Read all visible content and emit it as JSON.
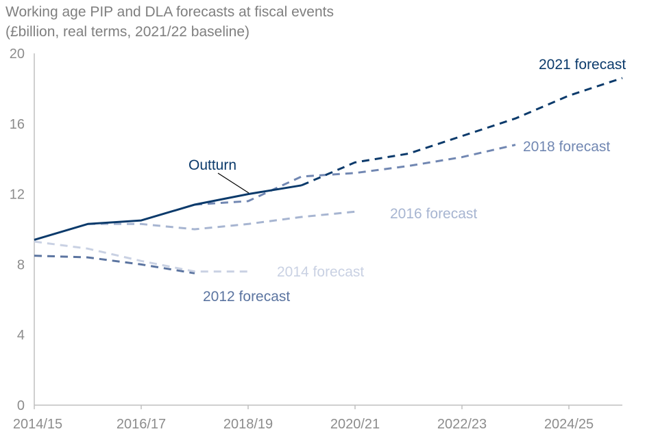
{
  "chart_data": {
    "type": "line",
    "title": "Working age PIP and DLA forecasts at fiscal events",
    "subtitle": "(£billion, real terms, 2021/22 baseline)",
    "xlabel": "",
    "ylabel": "",
    "ylim": [
      0,
      20
    ],
    "yticks": [
      0,
      4,
      8,
      12,
      16,
      20
    ],
    "x": [
      "2014/15",
      "2015/16",
      "2016/17",
      "2017/18",
      "2018/19",
      "2019/20",
      "2020/21",
      "2021/22",
      "2022/23",
      "2023/24",
      "2024/25",
      "2025/26"
    ],
    "xtick_labels": [
      "2014/15",
      "2016/17",
      "2018/19",
      "2020/21",
      "2022/23",
      "2024/25"
    ],
    "grid": false,
    "series": [
      {
        "name": "Outturn",
        "style": "solid",
        "color": "#0b3a6b",
        "values": [
          9.4,
          10.3,
          10.5,
          11.4,
          12.0,
          12.5,
          null,
          null,
          null,
          null,
          null,
          null
        ]
      },
      {
        "name": "2012 forecast",
        "style": "dashed",
        "color": "#5b74a0",
        "values": [
          8.5,
          8.4,
          8.0,
          7.5,
          null,
          null,
          null,
          null,
          null,
          null,
          null,
          null
        ]
      },
      {
        "name": "2014 forecast",
        "style": "dashed",
        "color": "#c9d1e3",
        "values": [
          9.3,
          8.9,
          8.2,
          7.6,
          7.6,
          null,
          null,
          null,
          null,
          null,
          null,
          null
        ]
      },
      {
        "name": "2016 forecast",
        "style": "dashed",
        "color": "#a7b5d1",
        "values": [
          null,
          10.3,
          10.3,
          10.0,
          10.3,
          10.7,
          11.0,
          null,
          null,
          null,
          null,
          null
        ]
      },
      {
        "name": "2018 forecast",
        "style": "dashed",
        "color": "#7187b2",
        "values": [
          null,
          null,
          null,
          11.4,
          11.6,
          13.0,
          13.2,
          13.6,
          14.1,
          14.8,
          null,
          null
        ]
      },
      {
        "name": "2021 forecast",
        "style": "dashed",
        "color": "#0b3a6b",
        "values": [
          null,
          null,
          null,
          null,
          null,
          12.5,
          13.8,
          14.3,
          15.3,
          16.3,
          17.6,
          18.6
        ]
      }
    ],
    "labels": {
      "outturn": "Outturn",
      "f2012": "2012 forecast",
      "f2014": "2014 forecast",
      "f2016": "2016 forecast",
      "f2018": "2018 forecast",
      "f2021": "2021 forecast"
    }
  }
}
